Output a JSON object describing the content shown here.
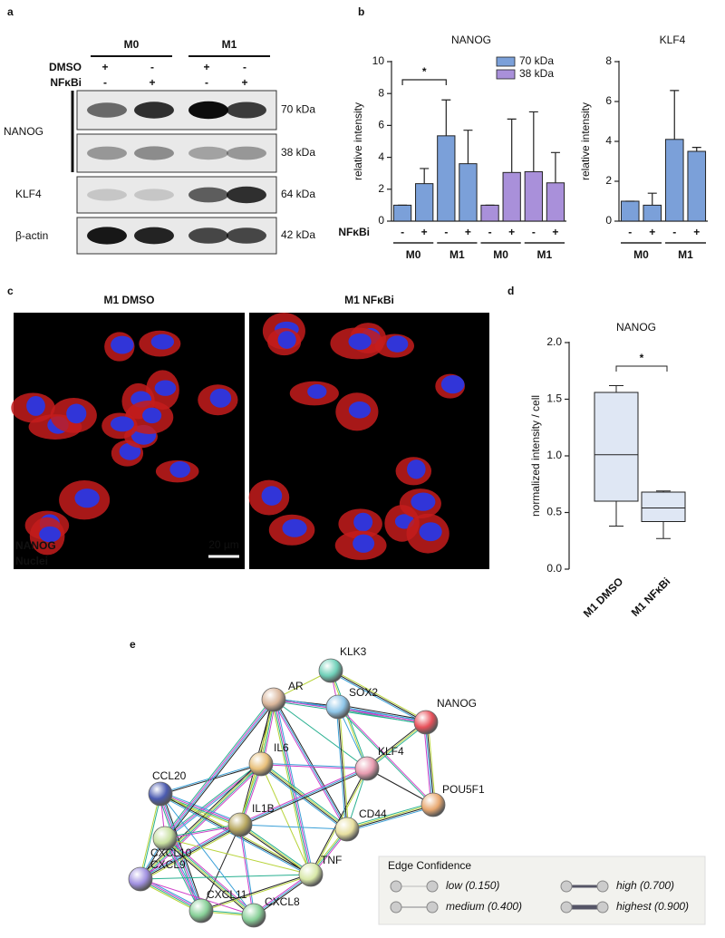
{
  "panel_labels": [
    "a",
    "b",
    "c",
    "d",
    "e"
  ],
  "western_blot": {
    "groups": [
      "M0",
      "M1"
    ],
    "row_labels": [
      "DMSO",
      "NFκBi"
    ],
    "treatments": [
      [
        "+",
        "-",
        "+",
        "-"
      ],
      [
        "-",
        "+",
        "-",
        "+"
      ]
    ],
    "proteins": [
      "NANOG",
      "KLF4",
      "β-actin"
    ],
    "kda": [
      "70 kDa",
      "38 kDa",
      "64 kDa",
      "42 kDa"
    ]
  },
  "chart_data": [
    {
      "type": "bar",
      "title": "NANOG",
      "y_label": "relative intensity",
      "x_label": "NFκBi",
      "categories": [
        "-",
        "+",
        "-",
        "+"
      ],
      "groups": [
        "M0",
        "M1"
      ],
      "series": [
        {
          "name": "70 kDa",
          "color": "#7ba0d9",
          "values": [
            1,
            2.35,
            5.35,
            3.6
          ],
          "errors": [
            0,
            0.95,
            2.25,
            2.1
          ]
        },
        {
          "name": "38 kDa",
          "color": "#a990da",
          "values": [
            1,
            3.05,
            3.1,
            2.4
          ],
          "errors": [
            0,
            3.35,
            3.75,
            1.9
          ]
        }
      ],
      "annotation": "*",
      "ylim": [
        0,
        10
      ],
      "yticks": [
        0,
        2,
        4,
        6,
        8,
        10
      ]
    },
    {
      "type": "bar",
      "title": "KLF4",
      "y_label": "relative intensity",
      "categories": [
        "-",
        "+",
        "-",
        "+"
      ],
      "groups": [
        "M0",
        "M1"
      ],
      "color": "#7ba0d9",
      "values": [
        1,
        0.8,
        4.1,
        3.5
      ],
      "errors": [
        0,
        0.6,
        2.45,
        0.2
      ],
      "ylim": [
        0,
        8
      ],
      "yticks": [
        0,
        2,
        4,
        6,
        8
      ]
    },
    {
      "type": "box",
      "title": "NANOG",
      "y_label": "normalized intensity / cell",
      "categories": [
        "M1 DMSO",
        "M1 NFκBi"
      ],
      "color": "#dfe7f4",
      "boxes": [
        {
          "min": 0.38,
          "q1": 0.6,
          "median": 1.01,
          "q3": 1.56,
          "max": 1.62
        },
        {
          "min": 0.27,
          "q1": 0.42,
          "median": 0.54,
          "q3": 0.68,
          "max": 0.69
        }
      ],
      "annotation": "*",
      "ylim": [
        0,
        2
      ],
      "yticks": [
        {
          "value": 0,
          "label": "0.0"
        },
        {
          "value": 0.5,
          "label": "0.5"
        },
        {
          "value": 1,
          "label": "1.0"
        },
        {
          "value": 1.5,
          "label": "1.5"
        },
        {
          "value": 2,
          "label": "2.0"
        }
      ]
    }
  ],
  "microscopy": {
    "titles": [
      "M1 DMSO",
      "M1 NFκBi"
    ],
    "legend": [
      "NANOG",
      "Nuclei"
    ],
    "scale_bar": "20 µm"
  },
  "network": {
    "nodes": [
      "AR",
      "KLK3",
      "SOX2",
      "NANOG",
      "IL6",
      "KLF4",
      "CCL20",
      "POU5F1",
      "IL1B",
      "CD44",
      "CXCL10",
      "TNF",
      "CXCL9",
      "CXCL11",
      "CXCL8"
    ],
    "legend_title": "Edge Confidence",
    "legend_items": [
      "low (0.150)",
      "medium (0.400)",
      "high (0.700)",
      "highest (0.900)"
    ]
  }
}
